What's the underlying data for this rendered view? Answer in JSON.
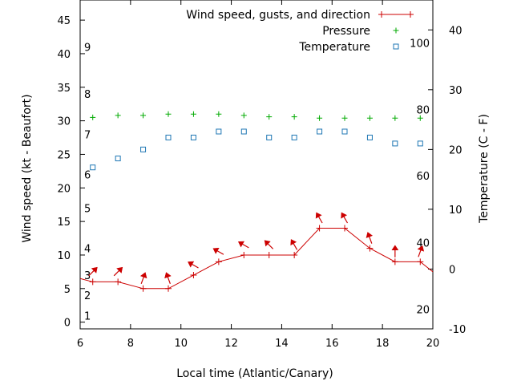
{
  "chart_data": {
    "type": "line",
    "title": "",
    "xlabel": "Local time (Atlantic/Canary)",
    "ylabel": "Wind speed (kt - Beaufort)",
    "y2label": "Temperature (C - F)",
    "xlim": [
      6,
      20
    ],
    "ylim": [
      -1,
      48
    ],
    "y2lim": [
      -10,
      45
    ],
    "x_ticks": [
      "6",
      "8",
      "10",
      "12",
      "14",
      "16",
      "18",
      "20"
    ],
    "y_ticks": [
      "0",
      "5",
      "10",
      "15",
      "20",
      "25",
      "30",
      "35",
      "40",
      "45"
    ],
    "y2_ticks": [
      "-10",
      "0",
      "10",
      "20",
      "30",
      "40"
    ],
    "beaufort_labels": [
      {
        "label": "1",
        "value": 1
      },
      {
        "label": "2",
        "value": 4
      },
      {
        "label": "3",
        "value": 7
      },
      {
        "label": "4",
        "value": 11
      },
      {
        "label": "5",
        "value": 17
      },
      {
        "label": "6",
        "value": 22
      },
      {
        "label": "7",
        "value": 28
      },
      {
        "label": "8",
        "value": 34
      },
      {
        "label": "9",
        "value": 41
      }
    ],
    "fahrenheit_labels": [
      {
        "label": "20",
        "value": -6.7
      },
      {
        "label": "40",
        "value": 4.4
      },
      {
        "label": "60",
        "value": 15.6
      },
      {
        "label": "80",
        "value": 26.7
      },
      {
        "label": "100",
        "value": 37.8
      }
    ],
    "series": [
      {
        "name": "Wind speed, gusts, and direction",
        "color": "#cc0000",
        "marker": "plus",
        "x": [
          6,
          6.5,
          7.5,
          8.5,
          9.5,
          10.5,
          11.5,
          12.5,
          13.5,
          14.5,
          15.5,
          16.5,
          17.5,
          18.5,
          19.5,
          20
        ],
        "y": [
          6.5,
          6,
          6,
          5,
          5,
          7,
          9,
          10,
          10,
          10,
          14,
          14,
          11,
          9,
          9,
          7.5
        ],
        "direction_arrows": [
          {
            "x": 6.5,
            "dir_deg": 315
          },
          {
            "x": 7.5,
            "dir_deg": 315
          },
          {
            "x": 8.5,
            "dir_deg": 340
          },
          {
            "x": 9.5,
            "dir_deg": 20
          },
          {
            "x": 10.5,
            "dir_deg": 60
          },
          {
            "x": 11.5,
            "dir_deg": 60
          },
          {
            "x": 12.5,
            "dir_deg": 60
          },
          {
            "x": 13.5,
            "dir_deg": 45
          },
          {
            "x": 14.5,
            "dir_deg": 30
          },
          {
            "x": 15.5,
            "dir_deg": 30
          },
          {
            "x": 16.5,
            "dir_deg": 30
          },
          {
            "x": 17.5,
            "dir_deg": 20
          },
          {
            "x": 18.5,
            "dir_deg": 0
          },
          {
            "x": 19.5,
            "dir_deg": 340
          }
        ]
      },
      {
        "name": "Pressure",
        "color": "#00aa00",
        "marker": "plus",
        "axis": "left-pixel",
        "x": [
          6.5,
          7.5,
          8.5,
          9.5,
          10.5,
          11.5,
          12.5,
          13.5,
          14.5,
          15.5,
          16.5,
          17.5,
          18.5,
          19.5
        ],
        "y": [
          30.5,
          30.8,
          30.8,
          31.0,
          31.0,
          31.0,
          30.8,
          30.6,
          30.6,
          30.4,
          30.4,
          30.4,
          30.4,
          30.4
        ]
      },
      {
        "name": "Temperature",
        "color": "#1f77b4",
        "marker": "square",
        "axis": "right",
        "x": [
          6.5,
          7.5,
          8.5,
          9.5,
          10.5,
          11.5,
          12.5,
          13.5,
          14.5,
          15.5,
          16.5,
          17.5,
          18.5,
          19.5
        ],
        "y": [
          17,
          18.5,
          20,
          22,
          22,
          23,
          23,
          22,
          22,
          23,
          23,
          22,
          21,
          21
        ]
      }
    ],
    "legend": {
      "placement": "top-right",
      "entries": [
        "Wind speed, gusts, and direction",
        "Pressure",
        "Temperature"
      ]
    },
    "grid": false
  }
}
